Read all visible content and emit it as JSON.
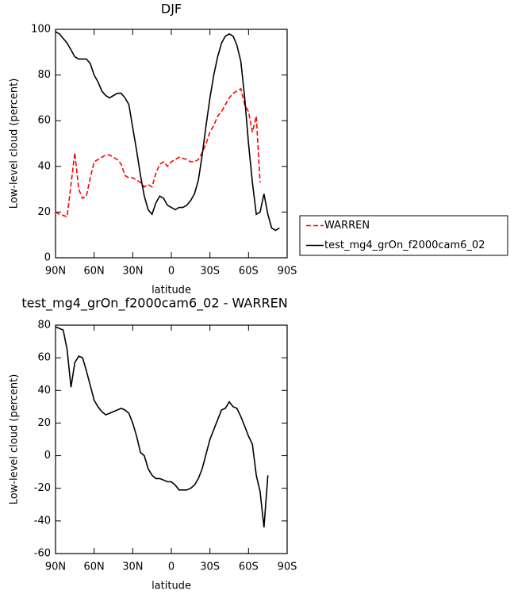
{
  "chart_data": [
    {
      "type": "line",
      "title": "DJF",
      "x_label": "latitude",
      "y_label": "Low-level cloud (percent)",
      "x": [
        90,
        87,
        84,
        81,
        78,
        75,
        72,
        69,
        66,
        63,
        60,
        57,
        54,
        51,
        48,
        45,
        42,
        39,
        36,
        33,
        30,
        27,
        24,
        21,
        18,
        15,
        12,
        9,
        6,
        3,
        0,
        -3,
        -6,
        -9,
        -12,
        -15,
        -18,
        -21,
        -24,
        -27,
        -30,
        -33,
        -36,
        -39,
        -42,
        -45,
        -48,
        -51,
        -54,
        -57,
        -60,
        -63,
        -66,
        -69,
        -72,
        -75,
        -78,
        -81,
        -84
      ],
      "series": [
        {
          "name": "WARREN",
          "color": "#ff0000",
          "style": "dashed",
          "values": [
            20,
            19,
            18.5,
            18,
            32,
            46,
            30,
            26,
            27,
            35,
            42,
            43,
            44,
            45,
            45,
            44,
            43,
            41,
            36,
            35,
            35,
            34,
            33,
            31,
            32,
            31,
            37,
            41,
            42,
            40,
            42,
            43,
            44,
            43.5,
            43,
            42,
            42,
            43,
            46,
            50,
            55,
            58,
            62,
            64,
            67,
            70,
            72,
            73,
            74,
            67,
            64,
            55,
            62,
            33,
            null,
            null,
            null,
            null,
            null
          ]
        },
        {
          "name": "test_mg4_grOn_f2000cam6_02",
          "color": "#000000",
          "style": "solid",
          "values": [
            99,
            98,
            96,
            94,
            91,
            88,
            87,
            87,
            87,
            85,
            80,
            77,
            73,
            71,
            70,
            71,
            72,
            72,
            70,
            67,
            57,
            47,
            36,
            27,
            21,
            19,
            24,
            27,
            26,
            23,
            22,
            21,
            22,
            22,
            23,
            25,
            28,
            34,
            45,
            58,
            70,
            80,
            88,
            94,
            97,
            98,
            97,
            93,
            86,
            70,
            50,
            33,
            19,
            20,
            28,
            19,
            13,
            12,
            13
          ]
        }
      ],
      "xlim": [
        90,
        -90
      ],
      "xticks": [
        {
          "value": 90,
          "label": "90N"
        },
        {
          "value": 60,
          "label": "60N"
        },
        {
          "value": 30,
          "label": "30N"
        },
        0,
        {
          "value": -30,
          "label": "30S"
        },
        {
          "value": -60,
          "label": "60S"
        },
        {
          "value": -90,
          "label": "90S"
        }
      ],
      "ylim": [
        0,
        100
      ],
      "yticks": [
        0,
        20,
        40,
        60,
        80,
        100
      ],
      "grid": false,
      "legend": "right"
    },
    {
      "type": "line",
      "title": "test_mg4_grOn_f2000cam6_02 - WARREN",
      "x_label": "latitude",
      "y_label": "Low-level cloud (percent)",
      "x": [
        90,
        87,
        84,
        81,
        78,
        75,
        72,
        69,
        66,
        63,
        60,
        57,
        54,
        51,
        48,
        45,
        42,
        39,
        36,
        33,
        30,
        27,
        24,
        21,
        18,
        15,
        12,
        9,
        6,
        3,
        0,
        -3,
        -6,
        -9,
        -12,
        -15,
        -18,
        -21,
        -24,
        -27,
        -30,
        -33,
        -36,
        -39,
        -42,
        -45,
        -48,
        -51,
        -54,
        -57,
        -60,
        -63,
        -66,
        -69,
        -72,
        -75,
        -78,
        -81,
        -84
      ],
      "series": [
        {
          "color": "#000000",
          "style": "solid",
          "values": [
            79,
            78,
            77,
            65,
            42,
            57,
            61,
            60,
            52,
            43,
            34,
            30,
            27,
            25,
            26,
            27,
            28,
            29,
            28,
            26,
            20,
            12,
            2,
            0,
            -8,
            -12,
            -14,
            -14,
            -15,
            -16,
            -16,
            -18,
            -21,
            -21,
            -21,
            -20,
            -18,
            -14,
            -8,
            1,
            10,
            16,
            22,
            28,
            29,
            33,
            30,
            29,
            24,
            18,
            12,
            7,
            -12,
            -22,
            -44,
            -12,
            null,
            null,
            null
          ]
        }
      ],
      "xlim": [
        90,
        -90
      ],
      "xticks": [
        {
          "value": 90,
          "label": "90N"
        },
        {
          "value": 60,
          "label": "60N"
        },
        {
          "value": 30,
          "label": "30N"
        },
        0,
        {
          "value": -30,
          "label": "30S"
        },
        {
          "value": -60,
          "label": "60S"
        },
        {
          "value": -90,
          "label": "90S"
        }
      ],
      "ylim": [
        -60,
        80
      ],
      "yticks": [
        -60,
        -40,
        -20,
        0,
        20,
        40,
        60,
        80
      ],
      "grid": false
    }
  ]
}
